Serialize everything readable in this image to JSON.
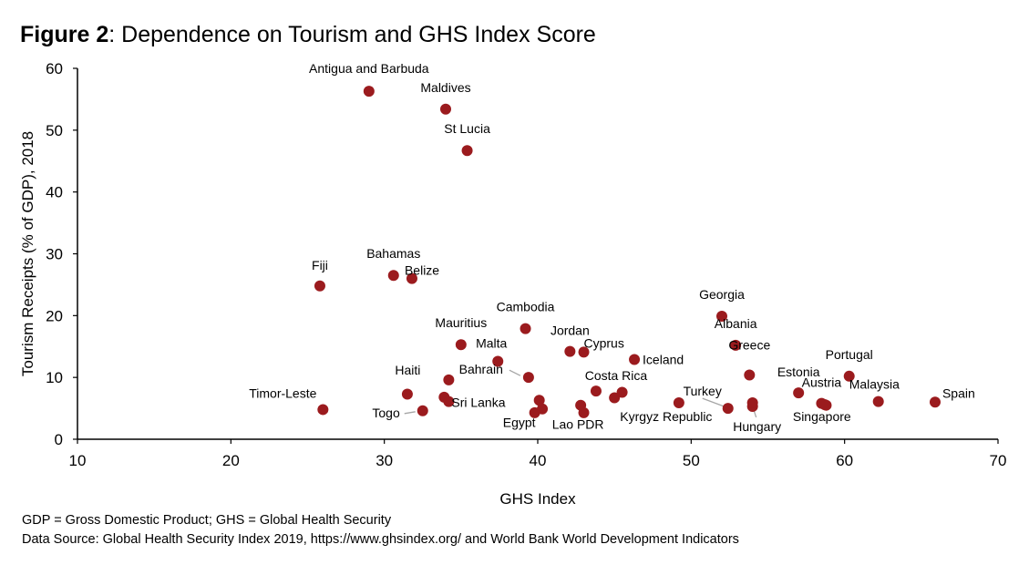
{
  "figure": {
    "number": "Figure 2",
    "title": ": Dependence on Tourism and GHS Index Score"
  },
  "footnotes": [
    "GDP = Gross Domestic Product; GHS = Global Health Security",
    "Data Source: Global Health Security Index 2019, https://www.ghsindex.org/ and World Bank World Development Indicators"
  ],
  "colors": {
    "marker": "#9b1b1e",
    "axis": "#000000",
    "leader": "#a6a6a6"
  },
  "chart_data": {
    "type": "scatter",
    "xlabel": "GHS Index",
    "ylabel": "Tourism Receipts (% of GDP), 2018",
    "xlim": [
      10,
      70
    ],
    "ylim": [
      0,
      60
    ],
    "xticks": [
      10,
      20,
      30,
      40,
      50,
      60,
      70
    ],
    "yticks": [
      0,
      10,
      20,
      30,
      40,
      50,
      60
    ],
    "grid": false,
    "points": [
      {
        "label": "Antigua and Barbuda",
        "x": 29.0,
        "y": 56.3
      },
      {
        "label": "Maldives",
        "x": 34.0,
        "y": 53.4
      },
      {
        "label": "St Lucia",
        "x": 35.4,
        "y": 46.7
      },
      {
        "label": "Fiji",
        "x": 25.8,
        "y": 24.8
      },
      {
        "label": "Bahamas",
        "x": 30.6,
        "y": 26.5
      },
      {
        "label": "Belize",
        "x": 31.8,
        "y": 26.0
      },
      {
        "label": "Cambodia",
        "x": 39.2,
        "y": 17.9
      },
      {
        "label": "Mauritius",
        "x": 35.0,
        "y": 15.3
      },
      {
        "label": "Malta",
        "x": 37.4,
        "y": 12.6
      },
      {
        "label": "Bahrain",
        "x": 39.4,
        "y": 10.0
      },
      {
        "label": "Jordan",
        "x": 42.1,
        "y": 14.2
      },
      {
        "label": "Cyprus",
        "x": 43.0,
        "y": 14.1
      },
      {
        "label": "Iceland",
        "x": 46.3,
        "y": 12.9
      },
      {
        "label": "Georgia",
        "x": 52.0,
        "y": 19.9
      },
      {
        "label": "Albania",
        "x": 52.9,
        "y": 15.2
      },
      {
        "label": "Greece",
        "x": 53.8,
        "y": 10.4
      },
      {
        "label": "Portugal",
        "x": 60.3,
        "y": 10.2
      },
      {
        "label": "Estonia",
        "x": 57.0,
        "y": 7.5
      },
      {
        "label": "Austria",
        "x": 58.5,
        "y": 5.8
      },
      {
        "label": "Malaysia",
        "x": 62.2,
        "y": 6.1
      },
      {
        "label": "Spain",
        "x": 65.9,
        "y": 6.0
      },
      {
        "label": "Singapore",
        "x": 58.7,
        "y": 5.6
      },
      {
        "label": "Hungary",
        "x": 54.0,
        "y": 5.9
      },
      {
        "label": "Turkey",
        "x": 52.4,
        "y": 5.0
      },
      {
        "label": "Kyrgyz Republic",
        "x": 49.2,
        "y": 5.9
      },
      {
        "label": "Costa Rica",
        "x": 43.8,
        "y": 7.8
      },
      {
        "label": "Lao PDR",
        "x": 42.8,
        "y": 5.5
      },
      {
        "label": "Egypt",
        "x": 40.1,
        "y": 6.3
      },
      {
        "label": "Haiti",
        "x": 34.2,
        "y": 9.6
      },
      {
        "label": "Sri Lanka",
        "x": 34.2,
        "y": 6.1
      },
      {
        "label": "Timor-Leste",
        "x": 26.0,
        "y": 4.8
      },
      {
        "label": "Togo",
        "x": 32.5,
        "y": 4.6
      }
    ],
    "unlabeled_points": [
      {
        "x": 31.5,
        "y": 7.3
      },
      {
        "x": 33.9,
        "y": 6.8
      },
      {
        "x": 39.8,
        "y": 4.3
      },
      {
        "x": 40.3,
        "y": 4.9
      },
      {
        "x": 43.0,
        "y": 4.3
      },
      {
        "x": 45.0,
        "y": 6.7
      },
      {
        "x": 45.5,
        "y": 7.6
      },
      {
        "x": 54.0,
        "y": 5.3
      },
      {
        "x": 58.8,
        "y": 5.5
      }
    ]
  }
}
